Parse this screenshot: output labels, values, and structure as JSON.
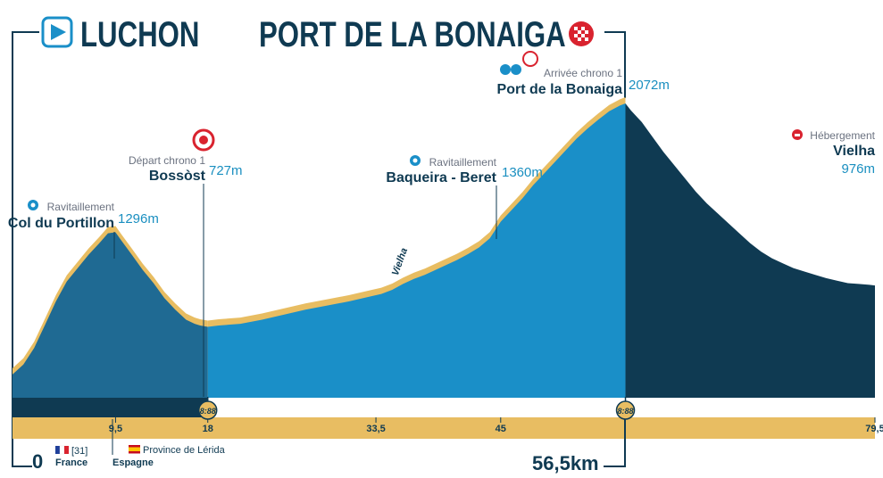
{
  "chart_data": {
    "type": "area",
    "start_title": "LUCHON",
    "finish_title": "PORT DE LA BONAIGA",
    "total_distance": "56,5km",
    "start_km_label": "0",
    "x_ticks": [
      "9,5",
      "18",
      "33,5",
      "45",
      "79,5"
    ],
    "x_tick_values": [
      9.5,
      18,
      33.5,
      45,
      79.5
    ],
    "xlim": [
      0,
      79.5
    ],
    "ylim": [
      300,
      2150
    ],
    "finish_km": 56.5,
    "profile": {
      "x": [
        0,
        1,
        2,
        3,
        4,
        5,
        6,
        7,
        8,
        8.8,
        9.5,
        10,
        11,
        12,
        13,
        14,
        15,
        16,
        16.8,
        17.3,
        18,
        19,
        21,
        23,
        25,
        27,
        29,
        31,
        33,
        34,
        35,
        36,
        37,
        38,
        39,
        40,
        41,
        42,
        43,
        44,
        45,
        46,
        47,
        48,
        49,
        50,
        51,
        52,
        53,
        54,
        55,
        56,
        56.5,
        57,
        58,
        59,
        60,
        61,
        62,
        63,
        64,
        65,
        66,
        67,
        68,
        69,
        70,
        71,
        72,
        73,
        74,
        75,
        76,
        77,
        78,
        79,
        79.5
      ],
      "y": [
        440,
        500,
        600,
        740,
        880,
        1000,
        1080,
        1160,
        1230,
        1290,
        1296,
        1250,
        1160,
        1070,
        990,
        900,
        830,
        770,
        745,
        735,
        727,
        735,
        745,
        770,
        800,
        830,
        855,
        880,
        910,
        925,
        950,
        985,
        1015,
        1040,
        1070,
        1100,
        1130,
        1165,
        1205,
        1260,
        1360,
        1430,
        1500,
        1580,
        1650,
        1720,
        1790,
        1860,
        1920,
        1975,
        2025,
        2060,
        2072,
        2030,
        1960,
        1870,
        1780,
        1700,
        1620,
        1540,
        1470,
        1410,
        1350,
        1290,
        1230,
        1180,
        1140,
        1110,
        1080,
        1060,
        1040,
        1020,
        1005,
        990,
        985,
        980,
        976
      ]
    },
    "series": [
      {
        "name": "Col du Portillon",
        "from_km": 0,
        "to_km": 18,
        "color": "#1f6a93"
      },
      {
        "name": "Bossòst",
        "from_km": 18,
        "to_km": 56.5,
        "color": "#1a8fc8"
      },
      {
        "name": "Vielha",
        "from_km": 56.5,
        "to_km": 79.5,
        "color": "#0f3a52"
      }
    ],
    "annotations": [
      {
        "km": 9.5,
        "elevation": 1296,
        "note": "Ravitaillement",
        "place": "Col du Portillon",
        "alt": "1296m",
        "icon": "ravito"
      },
      {
        "km": 18,
        "elevation": 727,
        "note": "Départ chrono 1",
        "place": "Bossòst",
        "alt": "727m",
        "icon": "chrono"
      },
      {
        "km": 45,
        "elevation": 1360,
        "note": "Ravitaillement",
        "place": "Baqueira - Beret",
        "alt": "1360m",
        "icon": "ravito"
      },
      {
        "km": 56.5,
        "elevation": 2072,
        "note": "Arrivée chrono 1",
        "place": "Port de la Bonaiga",
        "alt": "2072m",
        "icon": "finish"
      },
      {
        "km": 79.5,
        "elevation": 976,
        "note": "Hébergement",
        "place": "Vielha",
        "alt": "976m",
        "icon": "hebergement"
      }
    ],
    "road_label": "Vielha",
    "road_label_km": 35.5,
    "clock_labels": [
      {
        "km": 18,
        "text": "8:88"
      },
      {
        "km": 56.5,
        "text": "8:88"
      }
    ],
    "borders": [
      {
        "flag": "france",
        "code": "[31]",
        "country": "France"
      },
      {
        "flag": "spain",
        "region": "Province de Lérida",
        "country": "Espagne"
      }
    ],
    "colors": {
      "accent": "#e8bd62",
      "navy": "#0f3a52",
      "blue": "#1a8fc8",
      "mid_blue": "#1f6a93",
      "sky": "#1a8fc0",
      "red": "#d9232f"
    }
  }
}
